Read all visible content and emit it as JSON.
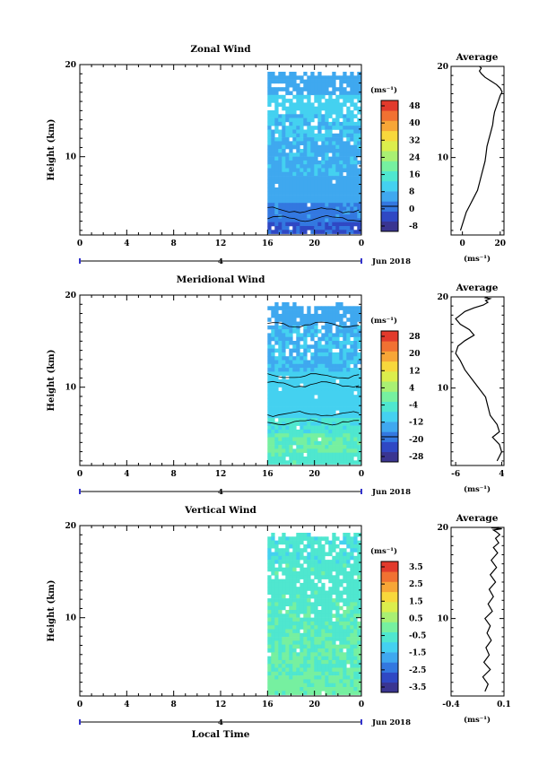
{
  "figure": {
    "bottom_label": "Local Time",
    "date_label": "Jun 2018",
    "colors": {
      "panel_border": "#000000",
      "background": "#ffffff",
      "colorscale": [
        "#3a3591",
        "#2f48c4",
        "#3378e0",
        "#3fa8ef",
        "#44d1f0",
        "#4fe7cf",
        "#76f0a0",
        "#a9f073",
        "#dcee4c",
        "#f8d83c",
        "#f7a637",
        "#f17132",
        "#e23a2c"
      ]
    }
  },
  "chart_data": [
    {
      "type": "heatmap",
      "title": "Zonal Wind",
      "ylabel": "Height (km)",
      "xlabel": "Local Time",
      "x_ticks": [
        "0",
        "4",
        "8",
        "12",
        "16",
        "20",
        "0"
      ],
      "y_ticks": [
        "10",
        "20"
      ],
      "ylim": [
        1.5,
        20
      ],
      "day_marker": "4",
      "data_start_hour": 16,
      "colorbar": {
        "unit": "(ms⁻¹)",
        "ticks": [
          "48",
          "40",
          "32",
          "24",
          "16",
          "8",
          "0",
          "-8"
        ]
      },
      "profile": {
        "title": "Average",
        "xlabel": "(ms⁻¹)",
        "x_ticks": [
          "0",
          "20"
        ],
        "xlim": [
          -6,
          22
        ],
        "y_ticks": [
          "10",
          "20"
        ],
        "x": [
          -1,
          0.5,
          2,
          4,
          6,
          8,
          9,
          10,
          11,
          12,
          12.5,
          13,
          14,
          15,
          16,
          16.5,
          17,
          18,
          19,
          20,
          21,
          20,
          18,
          15,
          12,
          10,
          9,
          10,
          9
        ],
        "y": [
          2,
          3,
          4,
          4.8,
          5.6,
          6.4,
          7.2,
          8,
          8.8,
          9.6,
          10.4,
          11.2,
          12,
          12.8,
          13.6,
          14.4,
          15,
          15.6,
          16.2,
          16.8,
          17.2,
          17.6,
          18,
          18.4,
          18.8,
          19.2,
          19.5,
          19.8,
          20
        ]
      }
    },
    {
      "type": "heatmap",
      "title": "Meridional Wind",
      "ylabel": "Height (km)",
      "xlabel": "Local Time",
      "x_ticks": [
        "0",
        "4",
        "8",
        "12",
        "16",
        "20",
        "0"
      ],
      "y_ticks": [
        "10",
        "20"
      ],
      "ylim": [
        1.5,
        20
      ],
      "day_marker": "4",
      "data_start_hour": 16,
      "colorbar": {
        "unit": "(ms⁻¹)",
        "ticks": [
          "28",
          "20",
          "12",
          "4",
          "-4",
          "-12",
          "-20",
          "-28"
        ]
      },
      "profile": {
        "title": "Average",
        "xlabel": "(ms⁻¹)",
        "x_ticks": [
          "-6",
          "4"
        ],
        "xlim": [
          -7,
          4.5
        ],
        "y_ticks": [
          "10",
          "20"
        ],
        "x": [
          3,
          4,
          3.5,
          2,
          3.5,
          3,
          1.5,
          1,
          0.5,
          -1,
          -2.5,
          -4,
          -5,
          -6,
          -5.5,
          -4,
          -2,
          -3,
          -5,
          -6,
          -5,
          -4,
          -2,
          0,
          1,
          0.5,
          1.5,
          0.5,
          1
        ],
        "y": [
          2,
          3,
          3.8,
          4.6,
          5.2,
          6,
          7,
          8,
          9,
          10,
          11,
          12,
          13,
          13.8,
          14.6,
          15.2,
          15.8,
          16.4,
          17,
          17.6,
          18,
          18.4,
          18.8,
          19.1,
          19.4,
          19.6,
          19.8,
          19.9,
          20
        ]
      }
    },
    {
      "type": "heatmap",
      "title": "Vertical Wind",
      "ylabel": "Height (km)",
      "xlabel": "Local Time",
      "x_ticks": [
        "0",
        "4",
        "8",
        "12",
        "16",
        "20",
        "0"
      ],
      "y_ticks": [
        "10",
        "20"
      ],
      "ylim": [
        1.5,
        20
      ],
      "day_marker": "4",
      "data_start_hour": 16,
      "colorbar": {
        "unit": "(ms⁻¹)",
        "ticks": [
          "3.5",
          "2.5",
          "1.5",
          "0.5",
          "-0.5",
          "-1.5",
          "-2.5",
          "-3.5"
        ]
      },
      "profile": {
        "title": "Average",
        "xlabel": "(ms⁻¹)",
        "x_ticks": [
          "-0.4",
          "0.1"
        ],
        "xlim": [
          -0.4,
          0.1
        ],
        "y_ticks": [
          "10",
          "20"
        ],
        "x": [
          -0.08,
          -0.05,
          -0.1,
          -0.03,
          -0.09,
          -0.04,
          -0.07,
          -0.02,
          -0.06,
          -0.03,
          -0.08,
          -0.01,
          -0.05,
          0.0,
          -0.04,
          0.02,
          -0.03,
          0.03,
          -0.02,
          0.04,
          0.0,
          0.05,
          0.02,
          0.06,
          0.03,
          0.0,
          0.08,
          -0.02,
          0.05
        ],
        "y": [
          2,
          2.8,
          3.6,
          4.4,
          5.2,
          6,
          6.8,
          7.6,
          8.4,
          9.2,
          10,
          10.8,
          11.6,
          12.4,
          13.2,
          14,
          14.8,
          15.6,
          16.4,
          17.2,
          17.8,
          18.3,
          18.8,
          19.2,
          19.5,
          19.7,
          19.85,
          19.95,
          20
        ]
      }
    }
  ]
}
